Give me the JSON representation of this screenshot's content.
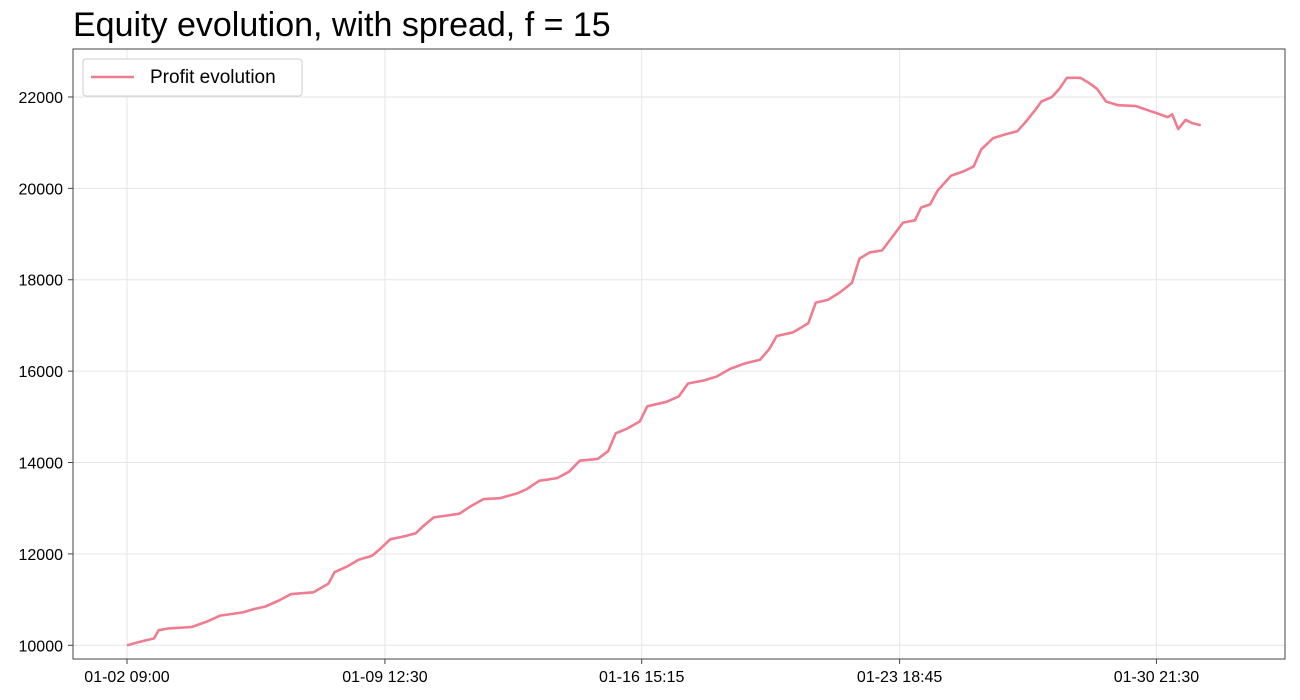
{
  "chart_data": {
    "type": "line",
    "title": "Equity evolution, with spread, f = 15",
    "xlabel": "",
    "ylabel": "",
    "x_ticks": [
      "01-02 09:00",
      "01-09 12:30",
      "01-16 15:15",
      "01-23 18:45",
      "01-30 21:30"
    ],
    "y_ticks": [
      10000,
      12000,
      14000,
      16000,
      18000,
      20000,
      22000
    ],
    "xlim": [
      "01-02 09:00",
      "02-03 11:00"
    ],
    "ylim": [
      9700,
      23050
    ],
    "grid": true,
    "legend_position": "top-left",
    "series": [
      {
        "name": "Profit evolution",
        "color": "#f07c8f",
        "points": [
          [
            "01-02 09:00",
            10000
          ],
          [
            "01-02 18:00",
            10080
          ],
          [
            "01-03 03:00",
            10150
          ],
          [
            "01-03 06:00",
            10330
          ],
          [
            "01-03 13:00",
            10370
          ],
          [
            "01-04 04:00",
            10400
          ],
          [
            "01-04 15:00",
            10530
          ],
          [
            "01-04 23:00",
            10650
          ],
          [
            "01-05 14:00",
            10720
          ],
          [
            "01-05 21:00",
            10790
          ],
          [
            "01-06 05:00",
            10850
          ],
          [
            "01-06 14:00",
            10980
          ],
          [
            "01-06 22:00",
            11120
          ],
          [
            "01-07 13:00",
            11160
          ],
          [
            "01-07 23:00",
            11350
          ],
          [
            "01-08 03:00",
            11600
          ],
          [
            "01-08 11:00",
            11720
          ],
          [
            "01-08 19:00",
            11870
          ],
          [
            "01-09 04:00",
            11960
          ],
          [
            "01-09 09:00",
            12100
          ],
          [
            "01-09 16:00",
            12320
          ],
          [
            "01-10 02:00",
            12390
          ],
          [
            "01-10 09:00",
            12450
          ],
          [
            "01-10 14:00",
            12610
          ],
          [
            "01-10 21:00",
            12800
          ],
          [
            "01-11 06:00",
            12840
          ],
          [
            "01-11 14:00",
            12880
          ],
          [
            "01-11 21:00",
            13030
          ],
          [
            "01-12 06:00",
            13200
          ],
          [
            "01-12 17:00",
            13220
          ],
          [
            "01-13 05:00",
            13330
          ],
          [
            "01-13 11:00",
            13420
          ],
          [
            "01-13 19:00",
            13600
          ],
          [
            "01-14 07:00",
            13660
          ],
          [
            "01-14 15:00",
            13800
          ],
          [
            "01-14 22:00",
            14040
          ],
          [
            "01-15 10:00",
            14080
          ],
          [
            "01-15 17:00",
            14250
          ],
          [
            "01-15 22:00",
            14640
          ],
          [
            "01-16 06:00",
            14750
          ],
          [
            "01-16 14:00",
            14900
          ],
          [
            "01-16 19:00",
            15230
          ],
          [
            "01-17 08:00",
            15330
          ],
          [
            "01-17 16:00",
            15450
          ],
          [
            "01-17 22:00",
            15730
          ],
          [
            "01-18 09:00",
            15800
          ],
          [
            "01-18 17:00",
            15880
          ],
          [
            "01-19 02:00",
            16050
          ],
          [
            "01-19 12:00",
            16170
          ],
          [
            "01-19 22:00",
            16250
          ],
          [
            "01-20 04:00",
            16480
          ],
          [
            "01-20 09:00",
            16770
          ],
          [
            "01-20 20:00",
            16850
          ],
          [
            "01-21 06:00",
            17050
          ],
          [
            "01-21 11:00",
            17500
          ],
          [
            "01-21 19:00",
            17560
          ],
          [
            "01-22 03:00",
            17720
          ],
          [
            "01-22 11:00",
            17930
          ],
          [
            "01-22 16:00",
            18460
          ],
          [
            "01-22 23:00",
            18600
          ],
          [
            "01-23 07:00",
            18640
          ],
          [
            "01-23 13:00",
            18900
          ],
          [
            "01-23 21:00",
            19250
          ],
          [
            "01-24 05:00",
            19300
          ],
          [
            "01-24 09:00",
            19580
          ],
          [
            "01-24 15:00",
            19650
          ],
          [
            "01-24 20:00",
            19950
          ],
          [
            "01-25 05:00",
            20280
          ],
          [
            "01-25 13:00",
            20370
          ],
          [
            "01-25 20:00",
            20480
          ],
          [
            "01-26 01:00",
            20850
          ],
          [
            "01-26 09:00",
            21100
          ],
          [
            "01-26 17:00",
            21180
          ],
          [
            "01-27 01:00",
            21250
          ],
          [
            "01-27 06:00",
            21430
          ],
          [
            "01-27 13:00",
            21720
          ],
          [
            "01-27 17:00",
            21900
          ],
          [
            "01-28 00:00",
            22000
          ],
          [
            "01-28 05:00",
            22180
          ],
          [
            "01-28 10:00",
            22420
          ],
          [
            "01-28 19:00",
            22420
          ],
          [
            "01-29 01:00",
            22300
          ],
          [
            "01-29 06:00",
            22180
          ],
          [
            "01-29 12:00",
            21900
          ],
          [
            "01-29 20:00",
            21820
          ],
          [
            "01-30 08:00",
            21800
          ],
          [
            "01-30 15:00",
            21720
          ],
          [
            "01-30 22:00",
            21640
          ],
          [
            "01-31 05:00",
            21560
          ],
          [
            "01-31 08:00",
            21620
          ],
          [
            "01-31 12:00",
            21300
          ],
          [
            "01-31 17:00",
            21500
          ],
          [
            "01-31 21:00",
            21430
          ],
          [
            "02-01 03:00",
            21380
          ]
        ]
      }
    ]
  }
}
